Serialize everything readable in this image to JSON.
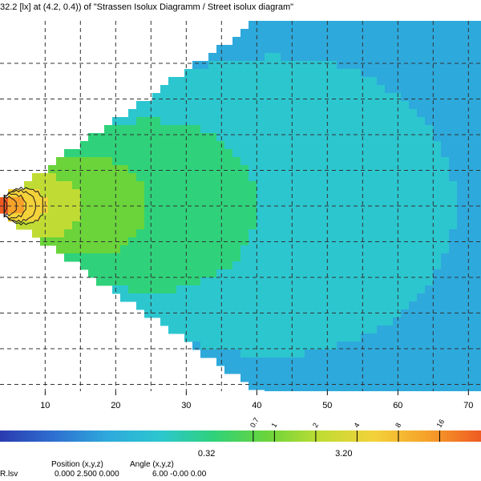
{
  "header": {
    "caption": "32.2 [lx] at (4.2, 0.4)) of \"Strassen Isolux Diagramm / Street isolux diagram\""
  },
  "footer": {
    "file_label": "R.lsv",
    "position_label": "Position (x,y,z)",
    "angle_label": "Angle (x,y,z)",
    "position_values": "0.000  2.500  0.000",
    "angle_values": "6.00  -0.00  0.00"
  },
  "colors": {
    "scale": [
      "#2a3bb0",
      "#2f6fd0",
      "#2ea9dc",
      "#2cc6cf",
      "#2fd27a",
      "#6ad43a",
      "#c0dc34",
      "#f4d23a",
      "#f6a12a",
      "#ef5a22"
    ],
    "contour": "#1a1a1a",
    "grid": "#333333"
  },
  "chart_data": {
    "type": "heatmap",
    "title": "Strassen Isolux Diagramm / Street isolux diagram",
    "x_ticks": [
      10,
      20,
      30,
      40,
      50,
      60,
      70
    ],
    "xlim": [
      4.2,
      78
    ],
    "grid": true,
    "source": {
      "x": 4.2,
      "y": 0.4
    },
    "contour_levels": [
      32.2,
      20,
      10,
      6,
      4,
      3
    ],
    "colorbar": {
      "scale": "log",
      "range": [
        0.01,
        32
      ],
      "tick_labels": [
        "0.32",
        "3.20"
      ],
      "top_tick_labels": [
        "0.7",
        "1",
        "2",
        "4",
        "8",
        "16"
      ]
    }
  }
}
